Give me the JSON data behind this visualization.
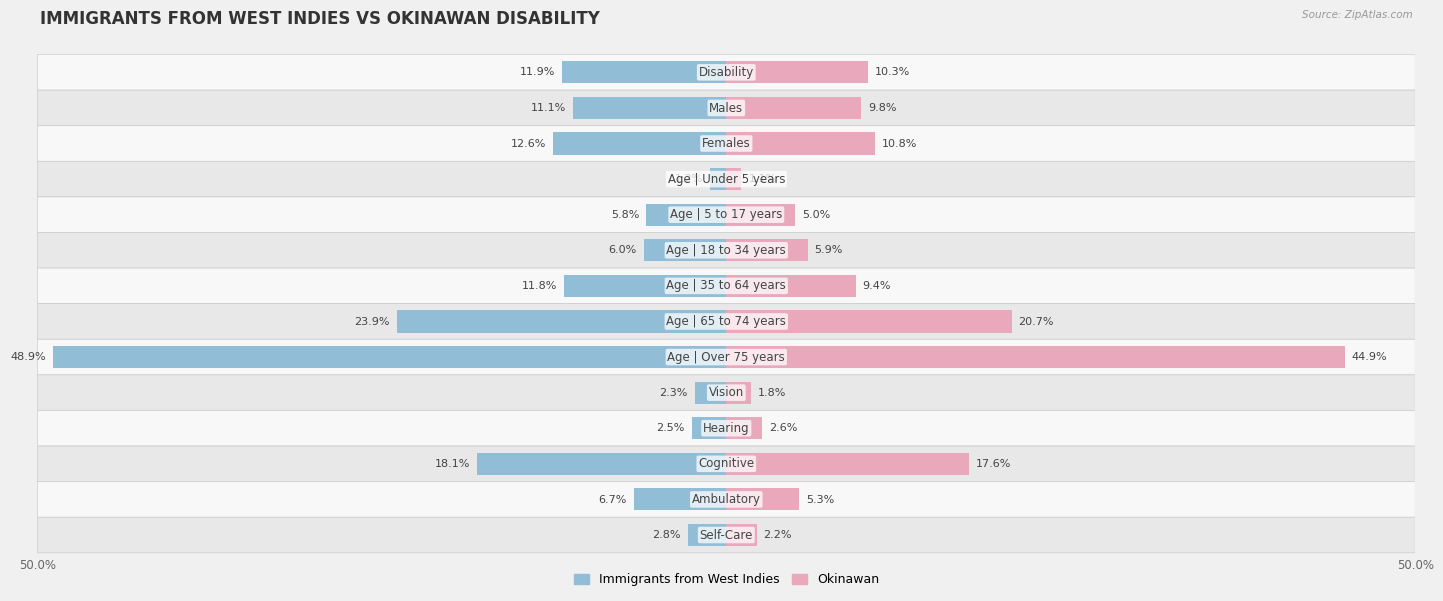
{
  "title": "IMMIGRANTS FROM WEST INDIES VS OKINAWAN DISABILITY",
  "source": "Source: ZipAtlas.com",
  "categories": [
    "Disability",
    "Males",
    "Females",
    "Age | Under 5 years",
    "Age | 5 to 17 years",
    "Age | 18 to 34 years",
    "Age | 35 to 64 years",
    "Age | 65 to 74 years",
    "Age | Over 75 years",
    "Vision",
    "Hearing",
    "Cognitive",
    "Ambulatory",
    "Self-Care"
  ],
  "left_values": [
    11.9,
    11.1,
    12.6,
    1.2,
    5.8,
    6.0,
    11.8,
    23.9,
    48.9,
    2.3,
    2.5,
    18.1,
    6.7,
    2.8
  ],
  "right_values": [
    10.3,
    9.8,
    10.8,
    1.1,
    5.0,
    5.9,
    9.4,
    20.7,
    44.9,
    1.8,
    2.6,
    17.6,
    5.3,
    2.2
  ],
  "left_color": "#92bdd6",
  "right_color": "#e9a8bb",
  "left_label": "Immigrants from West Indies",
  "right_label": "Okinawan",
  "max_val": 50.0,
  "bg_color": "#f0f0f0",
  "row_bg_light": "#f8f8f8",
  "row_bg_dark": "#e8e8e8",
  "title_fontsize": 12,
  "label_fontsize": 8.5,
  "value_fontsize": 8.0
}
